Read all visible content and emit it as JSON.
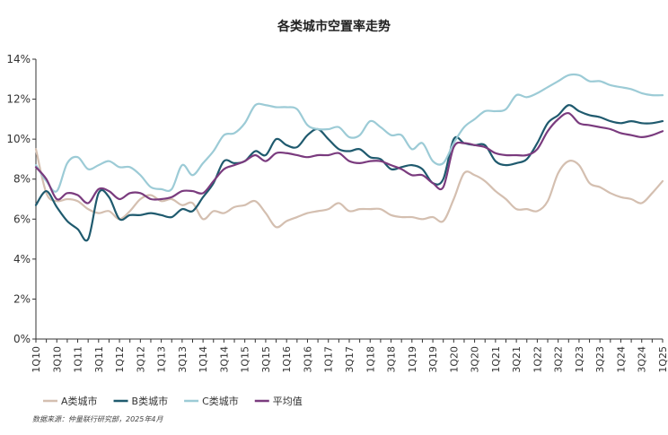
{
  "chart_data": {
    "type": "line",
    "title": "各类城市空置率走势",
    "xlabel": "",
    "ylabel": "",
    "ylim": [
      0,
      14
    ],
    "yticks": [
      "0%",
      "2%",
      "4%",
      "6%",
      "8%",
      "10%",
      "12%",
      "14%"
    ],
    "grid": false,
    "legend_position": "bottom-left",
    "source": "数据来源：仲量联行研究部，2025年4月",
    "x_tick_labels": [
      "1Q10",
      "3Q10",
      "1Q11",
      "3Q11",
      "1Q12",
      "3Q12",
      "1Q13",
      "3Q13",
      "1Q14",
      "3Q14",
      "1Q15",
      "3Q15",
      "1Q16",
      "3Q16",
      "1Q17",
      "3Q17",
      "1Q18",
      "3Q18",
      "1Q19",
      "3Q19",
      "1Q20",
      "3Q20",
      "1Q21",
      "3Q21",
      "1Q22",
      "3Q22",
      "1Q23",
      "3Q23",
      "1Q24",
      "3Q24",
      "1Q25"
    ],
    "categories": [
      "1Q10",
      "2Q10",
      "3Q10",
      "4Q10",
      "1Q11",
      "2Q11",
      "3Q11",
      "4Q11",
      "1Q12",
      "2Q12",
      "3Q12",
      "4Q12",
      "1Q13",
      "2Q13",
      "3Q13",
      "4Q13",
      "1Q14",
      "2Q14",
      "3Q14",
      "4Q14",
      "1Q15",
      "2Q15",
      "3Q15",
      "4Q15",
      "1Q16",
      "2Q16",
      "3Q16",
      "4Q16",
      "1Q17",
      "2Q17",
      "3Q17",
      "4Q17",
      "1Q18",
      "2Q18",
      "3Q18",
      "4Q18",
      "1Q19",
      "2Q19",
      "3Q19",
      "4Q19",
      "1Q20",
      "2Q20",
      "3Q20",
      "4Q20",
      "1Q21",
      "2Q21",
      "3Q21",
      "4Q21",
      "1Q22",
      "2Q22",
      "3Q22",
      "4Q22",
      "1Q23",
      "2Q23",
      "3Q23",
      "4Q23",
      "1Q24",
      "2Q24",
      "3Q24",
      "4Q24",
      "1Q25"
    ],
    "series": [
      {
        "name": "A类城市",
        "color": "#d4bfb0",
        "values": [
          9.5,
          7.3,
          6.9,
          7.0,
          6.9,
          6.5,
          6.3,
          6.4,
          6.0,
          6.4,
          7.0,
          7.2,
          6.9,
          7.0,
          6.7,
          6.8,
          6.0,
          6.4,
          6.3,
          6.6,
          6.7,
          6.9,
          6.3,
          5.6,
          5.9,
          6.1,
          6.3,
          6.4,
          6.5,
          6.8,
          6.4,
          6.5,
          6.5,
          6.5,
          6.2,
          6.1,
          6.1,
          6.0,
          6.1,
          5.9,
          7.0,
          8.3,
          8.2,
          7.9,
          7.4,
          7.0,
          6.5,
          6.5,
          6.4,
          6.9,
          8.3,
          8.9,
          8.7,
          7.8,
          7.6,
          7.3,
          7.1,
          7.0,
          6.8,
          7.3,
          7.9
        ]
      },
      {
        "name": "B类城市",
        "color": "#1f5a6e",
        "values": [
          6.7,
          7.4,
          6.6,
          5.9,
          5.5,
          5.0,
          7.3,
          7.1,
          6.0,
          6.2,
          6.2,
          6.3,
          6.2,
          6.1,
          6.5,
          6.4,
          7.1,
          7.8,
          8.9,
          8.8,
          8.9,
          9.4,
          9.2,
          10.0,
          9.7,
          9.6,
          10.2,
          10.5,
          10.0,
          9.5,
          9.4,
          9.5,
          9.1,
          9.0,
          8.5,
          8.6,
          8.7,
          8.5,
          7.8,
          8.0,
          10.0,
          9.8,
          9.7,
          9.7,
          8.9,
          8.7,
          8.8,
          9.0,
          9.8,
          10.8,
          11.2,
          11.7,
          11.4,
          11.2,
          11.1,
          10.9,
          10.8,
          10.9,
          10.8,
          10.8,
          10.9
        ]
      },
      {
        "name": "C类城市",
        "color": "#9ccbd6",
        "values": [
          8.7,
          7.9,
          7.4,
          8.8,
          9.1,
          8.5,
          8.7,
          8.9,
          8.6,
          8.6,
          8.2,
          7.6,
          7.5,
          7.5,
          8.7,
          8.2,
          8.8,
          9.4,
          10.2,
          10.3,
          10.8,
          11.7,
          11.7,
          11.6,
          11.6,
          11.5,
          10.7,
          10.5,
          10.5,
          10.6,
          10.1,
          10.2,
          10.9,
          10.6,
          10.2,
          10.2,
          9.5,
          9.8,
          8.9,
          8.8,
          9.8,
          10.6,
          11.0,
          11.4,
          11.4,
          11.5,
          12.2,
          12.1,
          12.3,
          12.6,
          12.9,
          13.2,
          13.2,
          12.9,
          12.9,
          12.7,
          12.6,
          12.5,
          12.3,
          12.2,
          12.2
        ]
      },
      {
        "name": "平均值",
        "color": "#7a3b7e",
        "values": [
          8.6,
          8.0,
          7.0,
          7.3,
          7.2,
          6.8,
          7.5,
          7.4,
          7.0,
          7.3,
          7.3,
          7.0,
          7.0,
          7.1,
          7.4,
          7.4,
          7.3,
          7.9,
          8.5,
          8.7,
          8.9,
          9.2,
          8.9,
          9.3,
          9.3,
          9.2,
          9.1,
          9.2,
          9.2,
          9.3,
          8.9,
          8.8,
          8.9,
          8.9,
          8.7,
          8.5,
          8.2,
          8.2,
          7.8,
          7.6,
          9.6,
          9.8,
          9.7,
          9.6,
          9.3,
          9.2,
          9.2,
          9.2,
          9.5,
          10.4,
          11.0,
          11.3,
          10.8,
          10.7,
          10.6,
          10.5,
          10.3,
          10.2,
          10.1,
          10.2,
          10.4
        ]
      }
    ]
  }
}
